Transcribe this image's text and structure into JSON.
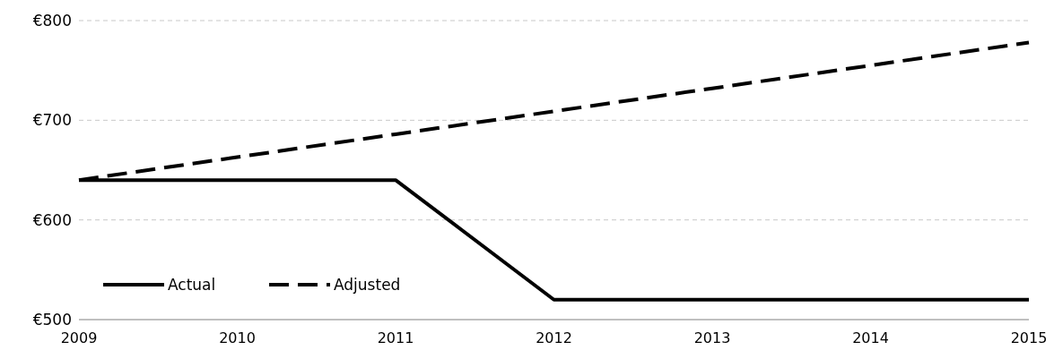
{
  "chart_data": {
    "type": "line",
    "x": [
      2009,
      2010,
      2011,
      2012,
      2013,
      2014,
      2015
    ],
    "series": [
      {
        "name": "Actual",
        "color": "#000000",
        "line_style": "solid",
        "values": [
          640,
          640,
          640,
          520,
          520,
          520,
          520
        ]
      },
      {
        "name": "Adjusted",
        "color": "#000000",
        "line_style": "dashed",
        "values": [
          640,
          663,
          686,
          709,
          732,
          755,
          778
        ]
      }
    ],
    "xlim": [
      2009,
      2015
    ],
    "xticks": [
      2009,
      2010,
      2011,
      2012,
      2013,
      2014,
      2015
    ],
    "ylim": [
      500,
      800
    ],
    "yticks": [
      {
        "value": 500,
        "label": "€500"
      },
      {
        "value": 600,
        "label": "€600"
      },
      {
        "value": 700,
        "label": "€700"
      },
      {
        "value": 800,
        "label": "€800"
      }
    ],
    "grid": "y",
    "legend": "bottom left"
  }
}
